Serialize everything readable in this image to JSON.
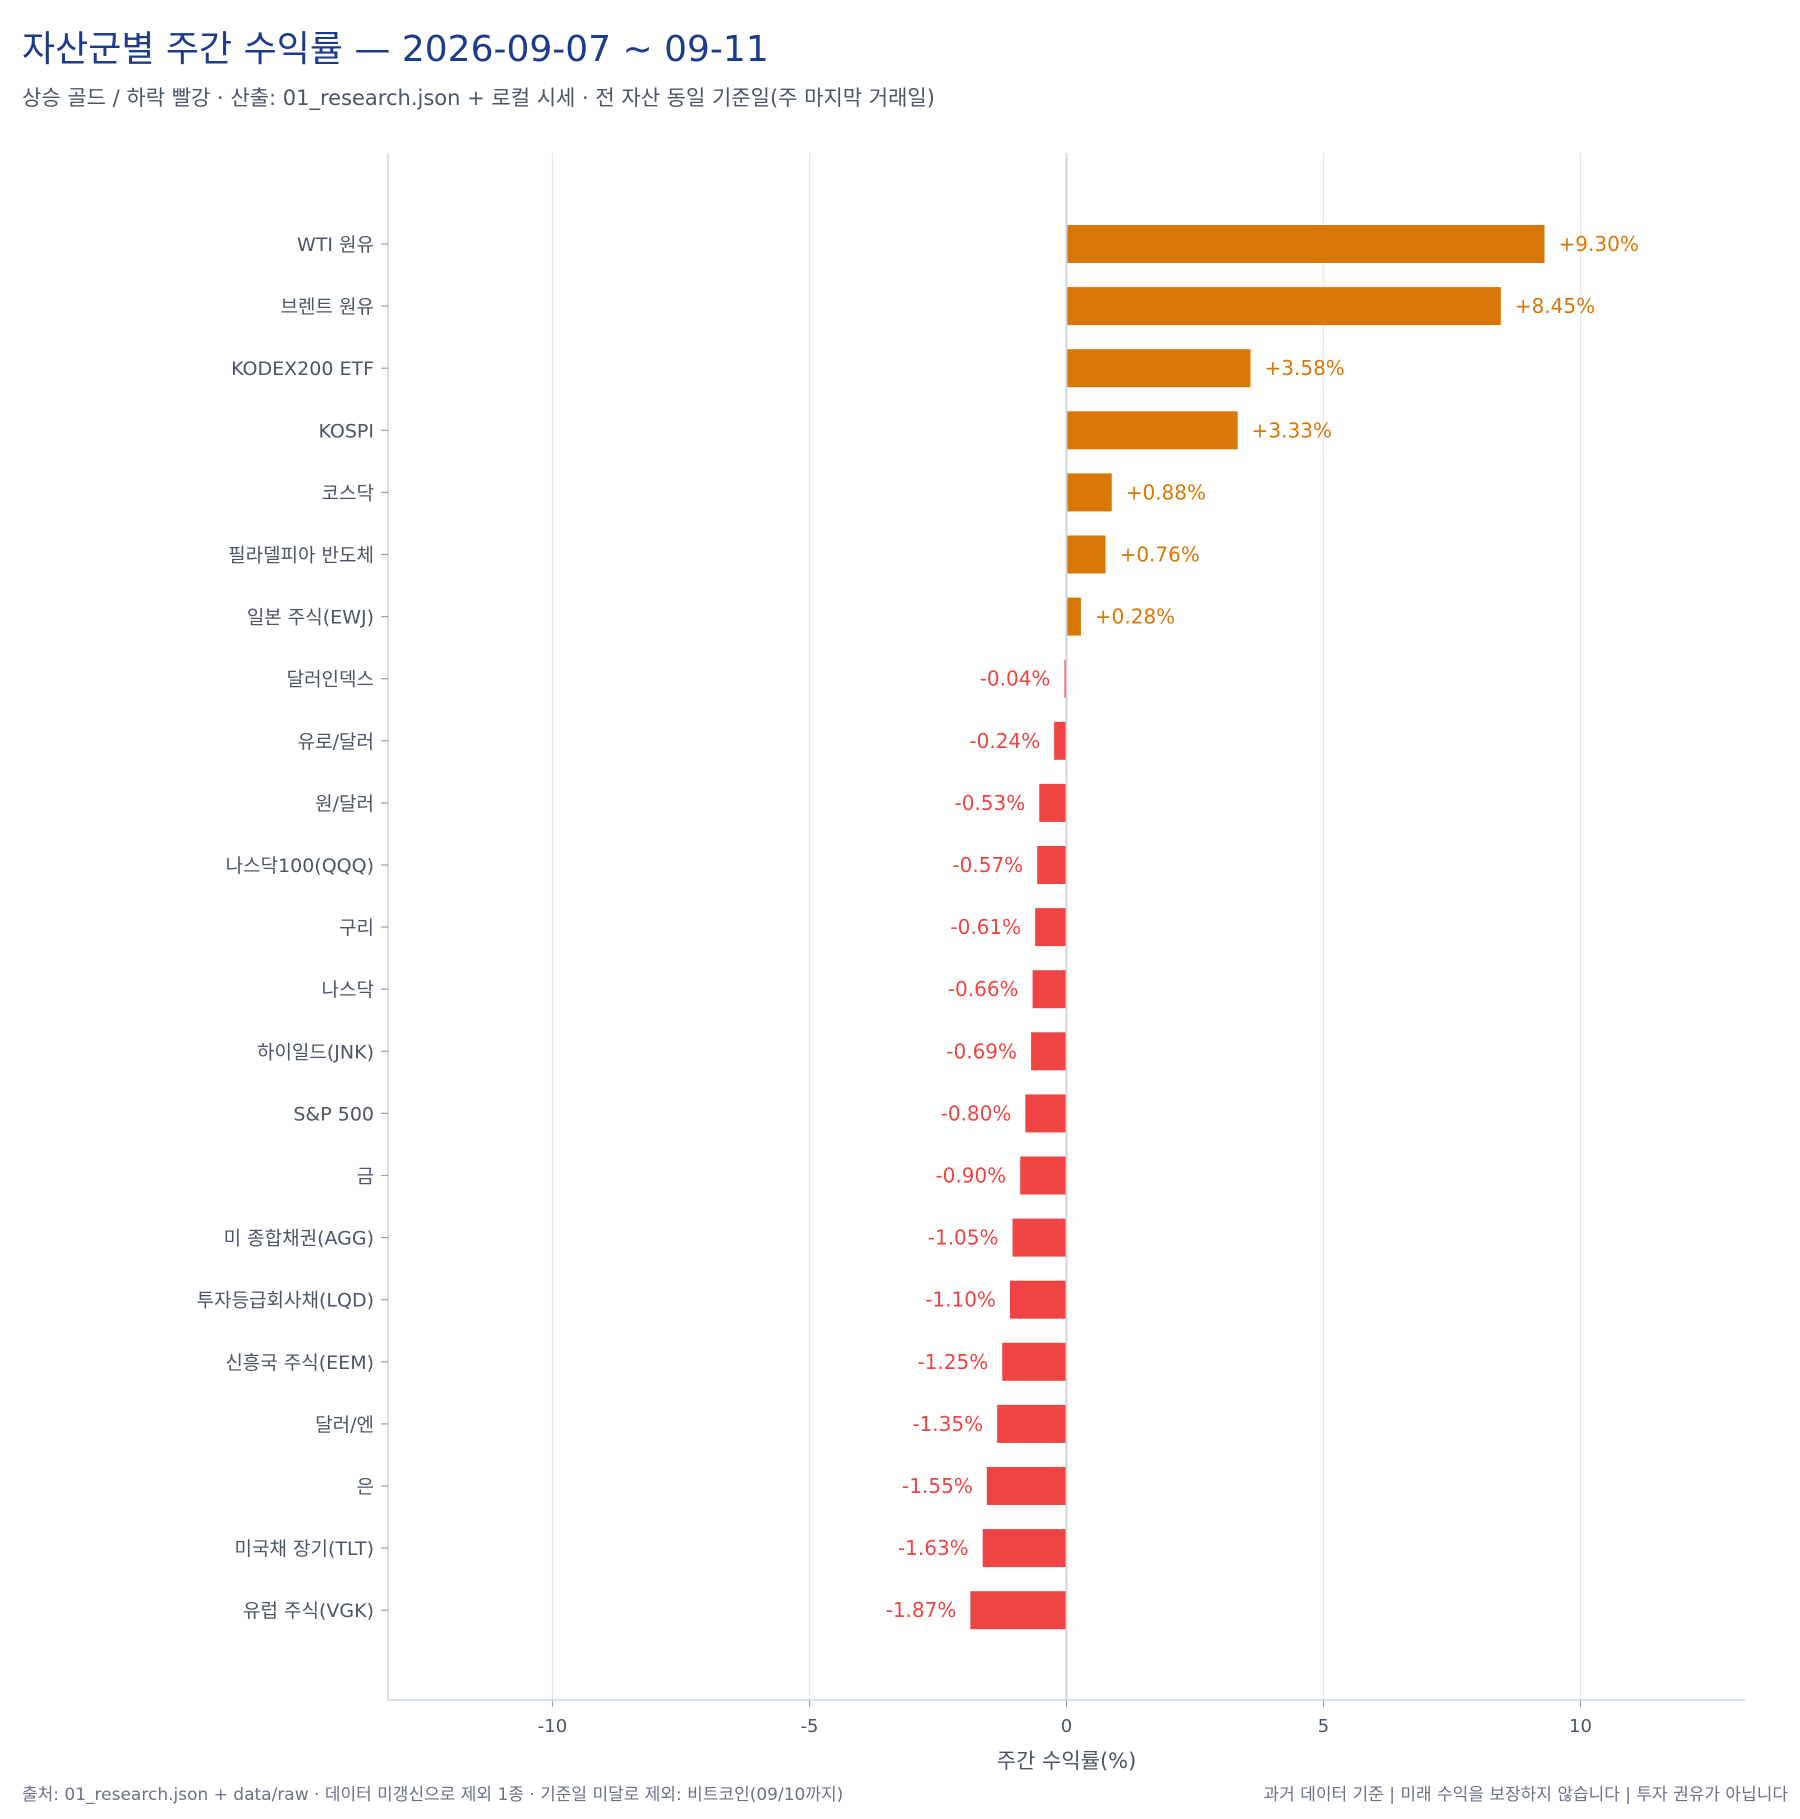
{
  "header": {
    "title": "자산군별 주간 수익률 — 2026-09-07 ~ 09-11",
    "subtitle": "상승 골드 / 하락 빨강 · 산출: 01_research.json + 로컬 시세 · 전 자산 동일 기준일(주 마지막 거래일)"
  },
  "footer": {
    "left": "출처: 01_research.json + data/raw · 데이터 미갱신으로 제외 1종 · 기준일 미달로 제외: 비트코인(09/10까지)",
    "right": "과거 데이터 기준 | 미래 수익을 보장하지 않습니다 | 투자 권유가 아닙니다"
  },
  "colors": {
    "positive": "#d97706",
    "negative": "#ef4444"
  },
  "chart_data": {
    "type": "bar",
    "orientation": "horizontal",
    "xlabel": "주간 수익률(%)",
    "xlim": [
      -13.2,
      13.2
    ],
    "xticks": [
      -10,
      -5,
      0,
      5,
      10
    ],
    "grid": true,
    "categories": [
      "WTI 원유",
      "브렌트 원유",
      "KODEX200 ETF",
      "KOSPI",
      "코스닥",
      "필라델피아 반도체",
      "일본 주식(EWJ)",
      "달러인덱스",
      "유로/달러",
      "원/달러",
      "나스닥100(QQQ)",
      "구리",
      "나스닥",
      "하이일드(JNK)",
      "S&P 500",
      "금",
      "미 종합채권(AGG)",
      "투자등급회사채(LQD)",
      "신흥국 주식(EEM)",
      "달러/엔",
      "은",
      "미국채 장기(TLT)",
      "유럽 주식(VGK)"
    ],
    "values": [
      9.3,
      8.45,
      3.58,
      3.33,
      0.88,
      0.76,
      0.28,
      -0.04,
      -0.24,
      -0.53,
      -0.57,
      -0.61,
      -0.66,
      -0.69,
      -0.8,
      -0.9,
      -1.05,
      -1.1,
      -1.25,
      -1.35,
      -1.55,
      -1.63,
      -1.87
    ],
    "value_labels": [
      "+9.30%",
      "+8.45%",
      "+3.58%",
      "+3.33%",
      "+0.88%",
      "+0.76%",
      "+0.28%",
      "-0.04%",
      "-0.24%",
      "-0.53%",
      "-0.57%",
      "-0.61%",
      "-0.66%",
      "-0.69%",
      "-0.80%",
      "-0.90%",
      "-1.05%",
      "-1.10%",
      "-1.25%",
      "-1.35%",
      "-1.55%",
      "-1.63%",
      "-1.87%"
    ]
  }
}
